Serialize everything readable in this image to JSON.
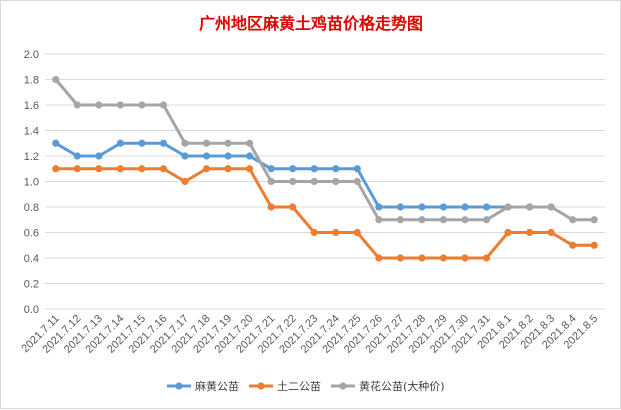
{
  "chart_data": {
    "type": "line",
    "title": "广州地区麻黄土鸡苗价格走势图",
    "title_color": "#e00000",
    "xlabel": "",
    "ylabel": "",
    "ylim": [
      0,
      2.0
    ],
    "y_ticks": [
      "0.0",
      "0.2",
      "0.4",
      "0.6",
      "0.8",
      "1.0",
      "1.2",
      "1.4",
      "1.6",
      "1.8",
      "2.0"
    ],
    "grid": true,
    "legend_position": "bottom",
    "x": [
      "2021.7.11",
      "2021.7.12",
      "2021.7.13",
      "2021.7.14",
      "2021.7.15",
      "2021.7.16",
      "2021.7.17",
      "2021.7.18",
      "2021.7.19",
      "2021.7.20",
      "2021.7.21",
      "2021.7.22",
      "2021.7.23",
      "2021.7.24",
      "2021.7.25",
      "2021.7.26",
      "2021.7.27",
      "2021.7.28",
      "2021.7.29",
      "2021.7.30",
      "2021.7.31",
      "2021.8.1",
      "2021.8.2",
      "2021.8.3",
      "2021.8.4",
      "2021.8.5"
    ],
    "series": [
      {
        "name": "麻黄公苗",
        "color": "#5b9bd5",
        "values": [
          1.3,
          1.2,
          1.2,
          1.3,
          1.3,
          1.3,
          1.2,
          1.2,
          1.2,
          1.2,
          1.1,
          1.1,
          1.1,
          1.1,
          1.1,
          0.8,
          0.8,
          0.8,
          0.8,
          0.8,
          0.8,
          0.8,
          0.8,
          0.8,
          null,
          null
        ]
      },
      {
        "name": "土二公苗",
        "color": "#ed7d31",
        "values": [
          1.1,
          1.1,
          1.1,
          1.1,
          1.1,
          1.1,
          1.0,
          1.1,
          1.1,
          1.1,
          0.8,
          0.8,
          0.6,
          0.6,
          0.6,
          0.4,
          0.4,
          0.4,
          0.4,
          0.4,
          0.4,
          0.6,
          0.6,
          0.6,
          0.5,
          0.5
        ]
      },
      {
        "name": "黄花公苗(大种价)",
        "color": "#a5a5a5",
        "values": [
          1.8,
          1.6,
          1.6,
          1.6,
          1.6,
          1.6,
          1.3,
          1.3,
          1.3,
          1.3,
          1.0,
          1.0,
          1.0,
          1.0,
          1.0,
          0.7,
          0.7,
          0.7,
          0.7,
          0.7,
          0.7,
          0.8,
          0.8,
          0.8,
          0.7,
          0.7
        ]
      }
    ]
  }
}
